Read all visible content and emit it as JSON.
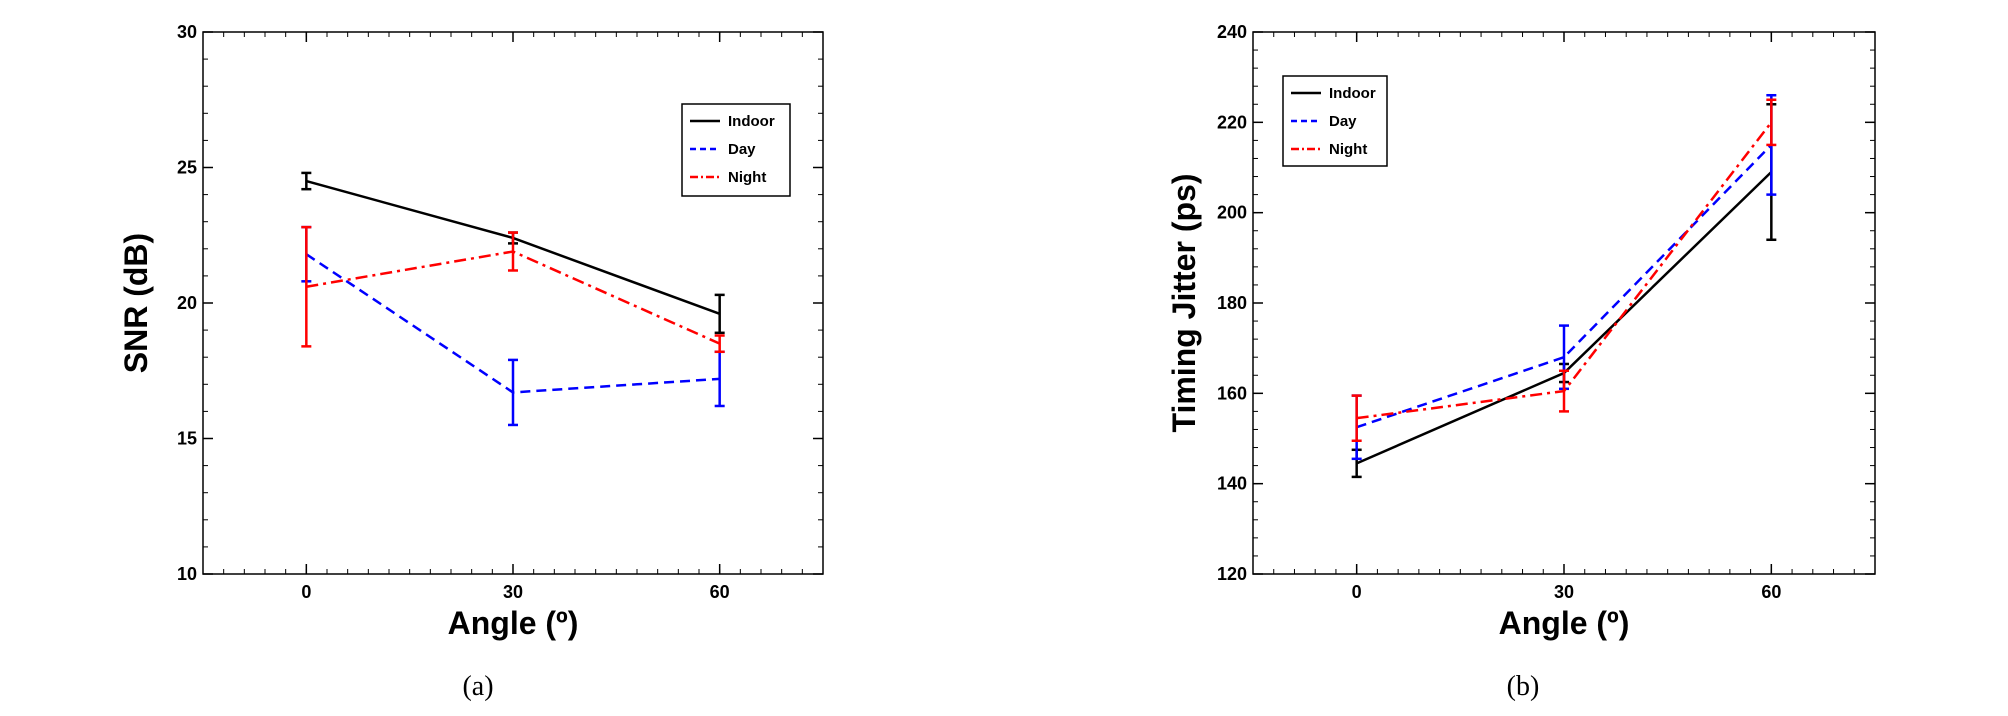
{
  "chart_data": [
    {
      "type": "line",
      "panel_label": "(a)",
      "title": "",
      "xlabel": "Angle (º)",
      "ylabel": "SNR (dB)",
      "xlim": [
        -15,
        75
      ],
      "ylim": [
        10,
        30
      ],
      "xticks": [
        0,
        30,
        60
      ],
      "yticks": [
        10,
        15,
        20,
        25,
        30
      ],
      "legend_position": "top-right",
      "x": [
        0,
        30,
        60
      ],
      "series": [
        {
          "name": "Indoor",
          "color": "#000000",
          "dash": "solid",
          "values": [
            24.5,
            22.4,
            19.6
          ],
          "errors": [
            0.3,
            0.2,
            0.7
          ]
        },
        {
          "name": "Day",
          "color": "#0000ff",
          "dash": "dashed",
          "values": [
            21.8,
            16.7,
            17.2
          ],
          "errors": [
            1.0,
            1.2,
            1.0
          ]
        },
        {
          "name": "Night",
          "color": "#ff0000",
          "dash": "dashdot",
          "values": [
            20.6,
            21.9,
            18.5
          ],
          "errors": [
            2.2,
            0.7,
            0.3
          ]
        }
      ]
    },
    {
      "type": "line",
      "panel_label": "(b)",
      "title": "",
      "xlabel": "Angle (º)",
      "ylabel": "Timing Jitter (ps)",
      "xlim": [
        -15,
        75
      ],
      "ylim": [
        120,
        240
      ],
      "xticks": [
        0,
        30,
        60
      ],
      "yticks": [
        120,
        140,
        160,
        180,
        200,
        220,
        240
      ],
      "legend_position": "top-left",
      "x": [
        0,
        30,
        60
      ],
      "series": [
        {
          "name": "Indoor",
          "color": "#000000",
          "dash": "solid",
          "values": [
            144.5,
            164.5,
            209
          ],
          "errors": [
            3,
            2,
            15
          ]
        },
        {
          "name": "Day",
          "color": "#0000ff",
          "dash": "dashed",
          "values": [
            152.5,
            168,
            215
          ],
          "errors": [
            7,
            7,
            11
          ]
        },
        {
          "name": "Night",
          "color": "#ff0000",
          "dash": "dashdot",
          "values": [
            154.5,
            160.5,
            220
          ],
          "errors": [
            5,
            4.5,
            5
          ]
        }
      ]
    }
  ]
}
